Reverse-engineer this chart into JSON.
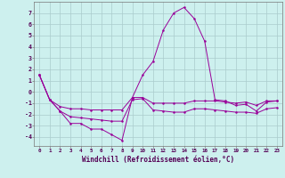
{
  "xlabel": "Windchill (Refroidissement éolien,°C)",
  "background_color": "#cdf0ee",
  "grid_color": "#aacccc",
  "line_color": "#990099",
  "x_hours": [
    0,
    1,
    2,
    3,
    4,
    5,
    6,
    7,
    8,
    9,
    10,
    11,
    12,
    13,
    14,
    15,
    16,
    17,
    18,
    19,
    20,
    21,
    22,
    23
  ],
  "y_main": [
    1.5,
    -0.7,
    -1.7,
    -2.8,
    -2.8,
    -3.3,
    -3.3,
    -3.8,
    -4.3,
    -0.5,
    1.5,
    2.7,
    5.5,
    7.0,
    7.5,
    6.5,
    4.5,
    -0.7,
    -0.8,
    -1.2,
    -1.1,
    -1.7,
    -0.9,
    -0.8
  ],
  "y_low": [
    1.5,
    -0.7,
    -1.7,
    -2.2,
    -2.3,
    -2.4,
    -2.5,
    -2.6,
    -2.6,
    -0.7,
    -0.6,
    -1.6,
    -1.7,
    -1.8,
    -1.8,
    -1.5,
    -1.5,
    -1.6,
    -1.7,
    -1.8,
    -1.8,
    -1.9,
    -1.5,
    -1.4
  ],
  "y_high": [
    1.5,
    -0.7,
    -1.3,
    -1.5,
    -1.5,
    -1.6,
    -1.6,
    -1.6,
    -1.6,
    -0.5,
    -0.5,
    -1.0,
    -1.0,
    -1.0,
    -1.0,
    -0.8,
    -0.8,
    -0.8,
    -0.9,
    -1.0,
    -0.9,
    -1.2,
    -0.8,
    -0.8
  ],
  "ylim": [
    -4.8,
    8.0
  ],
  "yticks": [
    -4,
    -3,
    -2,
    -1,
    0,
    1,
    2,
    3,
    4,
    5,
    6,
    7
  ],
  "figsize": [
    3.2,
    2.0
  ],
  "dpi": 100
}
